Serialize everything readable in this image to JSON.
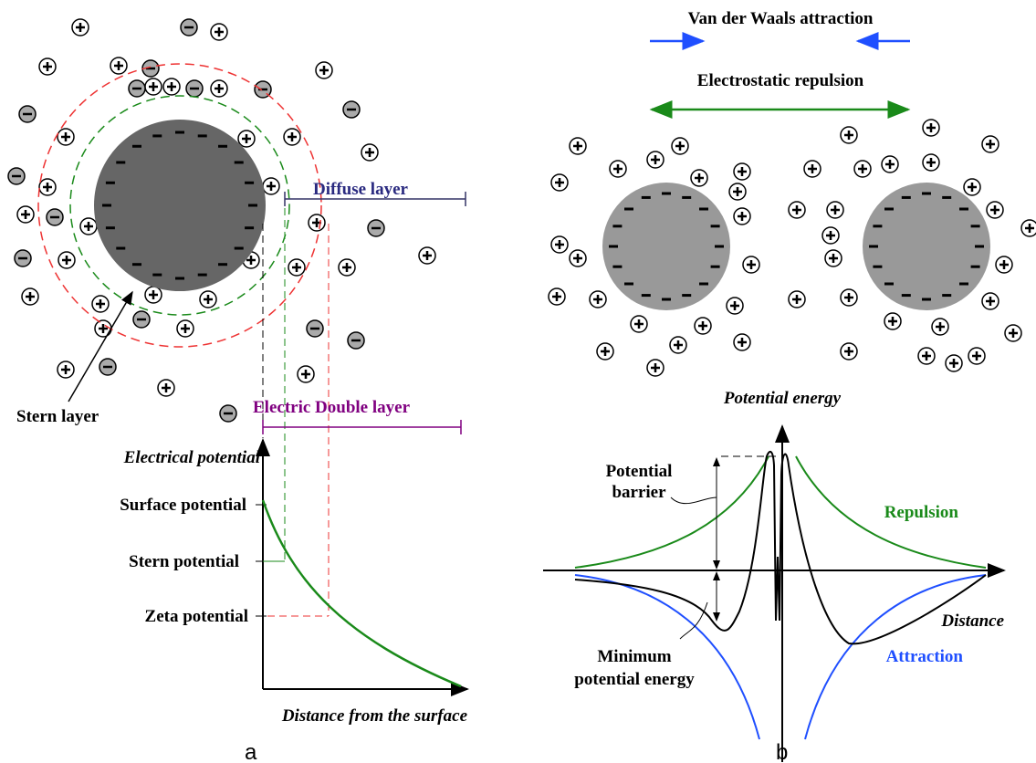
{
  "panel_a": {
    "diffuse_layer": "Diffuse layer",
    "stern_layer": "Stern layer",
    "double_layer": "Electric Double  layer",
    "y_axis_label": "Electrical potential",
    "surface_potential": "Surface potential",
    "stern_potential": "Stern potential",
    "zeta_potential": "Zeta potential",
    "x_axis_label": "Distance from the surface",
    "caption": "a"
  },
  "panel_b": {
    "van_der_waals": "Van der Waals attraction",
    "electrostatic": "Electrostatic repulsion",
    "y_axis_label": "Potential energy",
    "potential_barrier": [
      "Potential",
      "barrier"
    ],
    "repulsion": "Repulsion",
    "x_axis_label": "Distance",
    "attraction": "Attraction",
    "minimum": [
      "Minimum",
      "potential energy"
    ],
    "caption": "b"
  }
}
